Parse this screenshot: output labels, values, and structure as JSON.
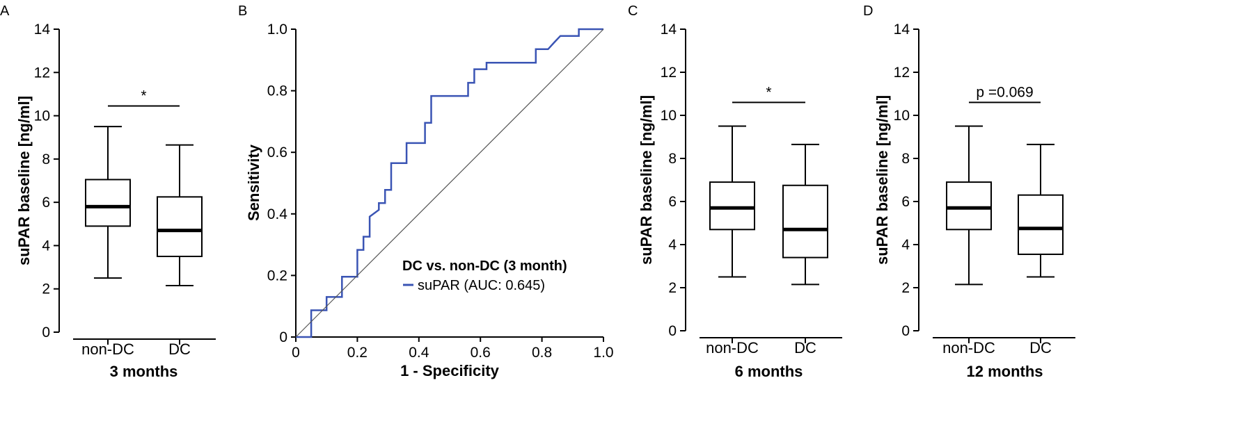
{
  "chart_data": [
    {
      "panel": "A",
      "type": "box",
      "ylabel": "suPAR baseline [ng/ml]",
      "xlabel": "3 months",
      "ylim": [
        0,
        14
      ],
      "yticks": [
        0,
        2,
        4,
        6,
        8,
        10,
        12,
        14
      ],
      "categories": [
        "non-DC",
        "DC"
      ],
      "boxes": [
        {
          "min": 2.5,
          "q1": 4.9,
          "median": 5.8,
          "q3": 7.05,
          "max": 9.5
        },
        {
          "min": 2.15,
          "q1": 3.5,
          "median": 4.7,
          "q3": 6.25,
          "max": 8.65
        }
      ],
      "significance": {
        "label": "*",
        "y": 10.45
      }
    },
    {
      "panel": "B",
      "type": "line",
      "ylabel": "Sensitivity",
      "xlabel": "1 - Specificity",
      "xlim": [
        0,
        1
      ],
      "ylim": [
        0,
        1
      ],
      "xticks": [
        "0",
        "0.2",
        "0.4",
        "0.6",
        "0.8",
        "1.0"
      ],
      "yticks": [
        "0",
        "0.2",
        "0.4",
        "0.6",
        "0.8",
        "1.0"
      ],
      "legend_title": "DC vs. non-DC (3 month)",
      "series": [
        {
          "name": "suPAR (AUC: 0.645)",
          "color": "#3a54b4",
          "x": [
            0,
            0.04,
            0.05,
            0.05,
            0.1,
            0.1,
            0.15,
            0.15,
            0.2,
            0.2,
            0.22,
            0.22,
            0.24,
            0.24,
            0.27,
            0.27,
            0.29,
            0.29,
            0.31,
            0.31,
            0.36,
            0.36,
            0.42,
            0.42,
            0.44,
            0.44,
            0.56,
            0.56,
            0.58,
            0.58,
            0.6,
            0.6,
            0.62,
            0.62,
            0.66,
            0.78,
            0.78,
            0.82,
            0.82,
            0.84,
            0.84,
            0.86,
            0.86,
            0.92,
            0.92,
            0.97,
            1.0
          ],
          "y": [
            0,
            0,
            0,
            0.087,
            0.087,
            0.13,
            0.13,
            0.196,
            0.196,
            0.283,
            0.283,
            0.326,
            0.326,
            0.391,
            0.413,
            0.435,
            0.435,
            0.478,
            0.478,
            0.565,
            0.565,
            0.63,
            0.63,
            0.696,
            0.696,
            0.783,
            0.783,
            0.826,
            0.826,
            0.87,
            0.87,
            0.87,
            0.87,
            0.891,
            0.891,
            0.891,
            0.935,
            0.935,
            0.935,
            0.957,
            0.957,
            0.978,
            0.978,
            0.978,
            1.0,
            1.0,
            1.0
          ]
        },
        {
          "name": "reference",
          "color": "#555555",
          "x": [
            0,
            1
          ],
          "y": [
            0,
            1
          ]
        }
      ]
    },
    {
      "panel": "C",
      "type": "box",
      "ylabel": "suPAR baseline [ng/ml]",
      "xlabel": "6 months",
      "ylim": [
        0,
        14
      ],
      "yticks": [
        0,
        2,
        4,
        6,
        8,
        10,
        12,
        14
      ],
      "categories": [
        "non-DC",
        "DC"
      ],
      "boxes": [
        {
          "min": 2.5,
          "q1": 4.7,
          "median": 5.7,
          "q3": 6.9,
          "max": 9.5
        },
        {
          "min": 2.15,
          "q1": 3.4,
          "median": 4.7,
          "q3": 6.75,
          "max": 8.65
        }
      ],
      "significance": {
        "label": "*",
        "y": 10.6
      }
    },
    {
      "panel": "D",
      "type": "box",
      "ylabel": "suPAR baseline [ng/ml]",
      "xlabel": "12 months",
      "ylim": [
        0,
        14
      ],
      "yticks": [
        0,
        2,
        4,
        6,
        8,
        10,
        12,
        14
      ],
      "categories": [
        "non-DC",
        "DC"
      ],
      "boxes": [
        {
          "min": 2.15,
          "q1": 4.7,
          "median": 5.7,
          "q3": 6.9,
          "max": 9.5
        },
        {
          "min": 2.5,
          "q1": 3.55,
          "median": 4.75,
          "q3": 6.3,
          "max": 8.65
        }
      ],
      "significance": {
        "label": "p =0.069",
        "y": 10.6
      }
    }
  ]
}
